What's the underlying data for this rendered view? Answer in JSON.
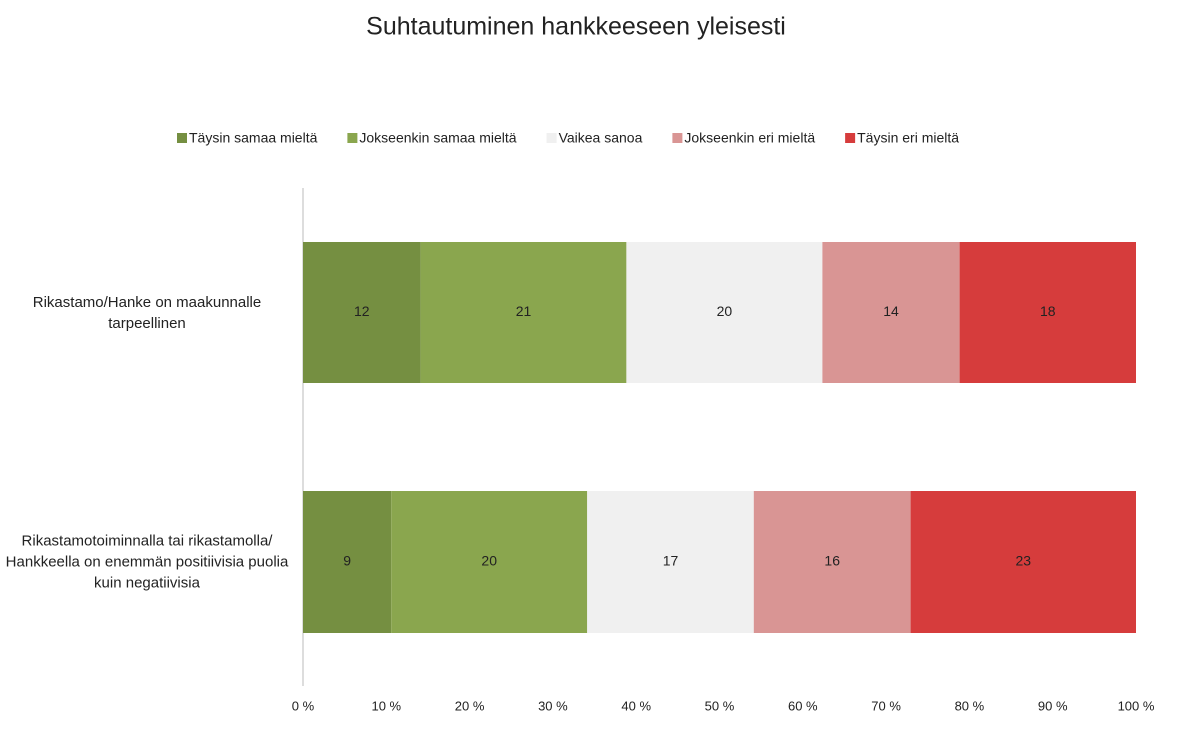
{
  "chart_data": {
    "type": "bar",
    "orientation": "horizontal",
    "stacked": "percent",
    "title": "Suhtautuminen hankkeeseen yleisesti",
    "categories": [
      "Rikastamo/Hanke on maakunnalle tarpeellinen",
      "Rikastamotoiminnalla tai rikastamolla/ Hankkeella on enemmän positiivisia puolia kuin negatiivisia"
    ],
    "series": [
      {
        "name": "Täysin samaa mieltä",
        "color": "#758f41",
        "values": [
          12,
          9
        ]
      },
      {
        "name": "Jokseenkin samaa mieltä",
        "color": "#8aa64e",
        "values": [
          21,
          20
        ]
      },
      {
        "name": "Vaikea sanoa",
        "color": "#f0f0f0",
        "values": [
          20,
          17
        ]
      },
      {
        "name": "Jokseenkin eri mieltä",
        "color": "#d99594",
        "values": [
          14,
          16
        ]
      },
      {
        "name": "Täysin eri mieltä",
        "color": "#d63c3c",
        "values": [
          18,
          23
        ]
      }
    ],
    "xlim": [
      0,
      100
    ],
    "xticks": [
      {
        "value": 0,
        "label": "0 %"
      },
      {
        "value": 10,
        "label": "10 %"
      },
      {
        "value": 20,
        "label": "20 %"
      },
      {
        "value": 30,
        "label": "30 %"
      },
      {
        "value": 40,
        "label": "40 %"
      },
      {
        "value": 50,
        "label": "50 %"
      },
      {
        "value": 60,
        "label": "60 %"
      },
      {
        "value": 70,
        "label": "70 %"
      },
      {
        "value": 80,
        "label": "80 %"
      },
      {
        "value": 90,
        "label": "90 %"
      },
      {
        "value": 100,
        "label": "100 %"
      }
    ],
    "legend": "top"
  }
}
